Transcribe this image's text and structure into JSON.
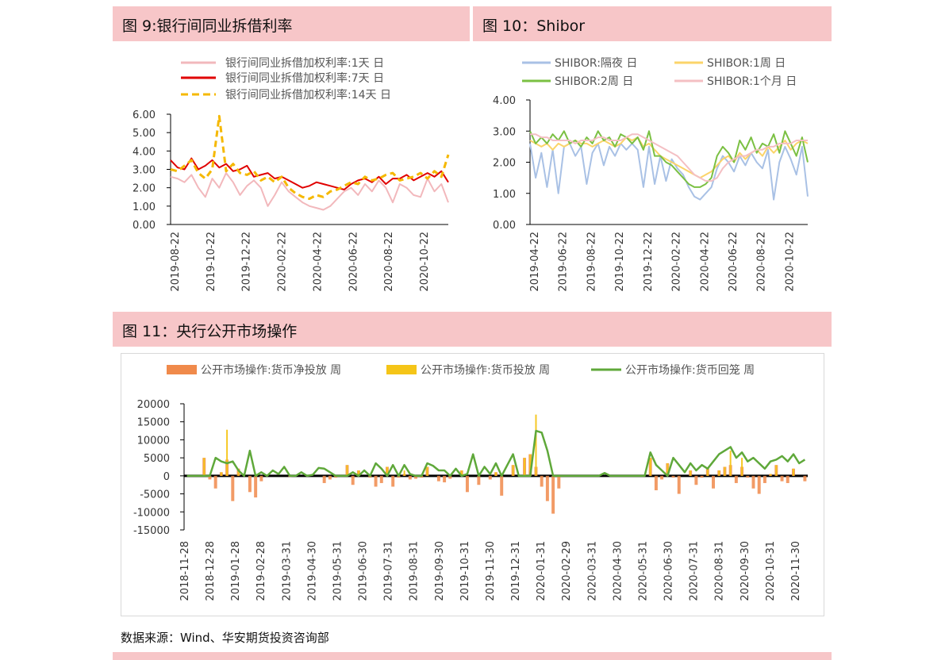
{
  "headers": {
    "fig9": "图 9:银行间同业拆借利率",
    "fig10": "图 10：Shibor",
    "fig11": "图 11：央行公开市场操作"
  },
  "source": "数据来源：Wind、华安期货投资咨询部",
  "chart_data": [
    {
      "id": "fig9",
      "type": "line",
      "ylim": [
        0,
        6
      ],
      "yticks": [
        "0.00",
        "1.00",
        "2.00",
        "3.00",
        "4.00",
        "5.00",
        "6.00"
      ],
      "xticks": [
        "2019-08-22",
        "2019-10-22",
        "2019-12-22",
        "2020-02-22",
        "2020-04-22",
        "2020-06-22",
        "2020-08-22",
        "2020-10-22"
      ],
      "legend": "top",
      "series": [
        {
          "name": "银行间同业拆借加权利率:1天 日",
          "color": "#f2b8bc",
          "style": "solid",
          "values": [
            2.6,
            2.5,
            2.3,
            2.7,
            2.0,
            1.5,
            2.5,
            2.0,
            2.8,
            2.3,
            1.6,
            2.1,
            2.4,
            2.0,
            1.0,
            1.6,
            2.3,
            1.8,
            1.5,
            1.2,
            1.0,
            0.9,
            0.8,
            1.0,
            1.4,
            1.8,
            2.0,
            1.6,
            2.2,
            1.8,
            2.4,
            2.0,
            1.2,
            2.2,
            2.0,
            1.6,
            1.5,
            2.5,
            1.8,
            2.2,
            1.2
          ]
        },
        {
          "name": "银行间同业拆借加权利率:7天 日",
          "color": "#e00000",
          "style": "solid",
          "values": [
            3.5,
            3.1,
            3.0,
            3.6,
            3.0,
            3.2,
            3.5,
            3.1,
            3.3,
            2.9,
            3.0,
            3.2,
            2.6,
            2.7,
            2.8,
            2.5,
            2.6,
            2.4,
            2.2,
            2.0,
            2.1,
            2.3,
            2.2,
            2.1,
            2.0,
            1.9,
            2.2,
            2.4,
            2.5,
            2.3,
            2.6,
            2.2,
            2.5,
            2.5,
            2.7,
            2.4,
            2.6,
            2.8,
            2.6,
            2.9,
            2.3
          ]
        },
        {
          "name": "银行间同业拆借加权利率:14天 日",
          "color": "#f5b800",
          "style": "dash",
          "values": [
            3.0,
            2.9,
            3.2,
            3.5,
            2.8,
            2.5,
            3.0,
            5.9,
            2.9,
            3.3,
            2.8,
            2.7,
            2.9,
            2.4,
            2.6,
            2.3,
            2.6,
            2.0,
            1.7,
            1.5,
            1.4,
            1.6,
            1.5,
            1.8,
            1.9,
            2.1,
            2.3,
            2.2,
            2.6,
            2.4,
            2.5,
            2.7,
            2.8,
            2.4,
            2.5,
            2.6,
            2.8,
            2.5,
            2.9,
            2.6,
            3.8
          ]
        }
      ]
    },
    {
      "id": "fig10",
      "type": "line",
      "ylim": [
        0,
        4
      ],
      "yticks": [
        "0.00",
        "1.00",
        "2.00",
        "3.00",
        "4.00"
      ],
      "xticks": [
        "2019-04-22",
        "2019-06-22",
        "2019-08-22",
        "2019-10-22",
        "2019-12-22",
        "2020-02-22",
        "2020-04-22",
        "2020-06-22",
        "2020-08-22",
        "2020-10-22"
      ],
      "legend": "top",
      "series": [
        {
          "name": "SHIBOR:隔夜 日",
          "color": "#a9c1e5",
          "values": [
            2.6,
            1.5,
            2.3,
            1.2,
            2.4,
            1.0,
            2.5,
            2.6,
            2.2,
            2.5,
            1.3,
            2.3,
            2.6,
            1.9,
            2.5,
            2.2,
            2.6,
            2.4,
            2.6,
            2.4,
            1.2,
            2.5,
            1.3,
            2.2,
            1.4,
            2.1,
            1.8,
            1.6,
            1.2,
            0.9,
            0.8,
            1.0,
            1.2,
            1.8,
            2.2,
            2.0,
            1.7,
            2.2,
            1.9,
            2.3,
            2.0,
            1.8,
            2.4,
            0.8,
            2.0,
            2.5,
            2.1,
            1.6,
            2.5,
            0.9
          ]
        },
        {
          "name": "SHIBOR:1周 日",
          "color": "#fbd46a",
          "values": [
            2.7,
            2.6,
            2.5,
            2.6,
            2.4,
            2.6,
            2.5,
            2.6,
            2.7,
            2.6,
            2.6,
            2.5,
            2.6,
            2.7,
            2.6,
            2.5,
            2.6,
            2.8,
            2.7,
            2.8,
            2.5,
            2.6,
            2.4,
            2.2,
            2.1,
            2.0,
            1.9,
            1.8,
            1.7,
            1.6,
            1.5,
            1.6,
            1.7,
            1.9,
            2.1,
            2.2,
            2.0,
            2.3,
            2.1,
            2.3,
            2.4,
            2.2,
            2.5,
            2.3,
            2.5,
            2.7,
            2.4,
            2.6,
            2.7,
            2.6
          ]
        },
        {
          "name": "SHIBOR:2周 日",
          "color": "#7bc043",
          "values": [
            3.0,
            2.6,
            2.8,
            2.6,
            2.9,
            2.7,
            3.0,
            2.6,
            2.7,
            2.5,
            2.8,
            2.6,
            3.0,
            2.7,
            2.8,
            2.5,
            2.9,
            2.8,
            2.6,
            2.8,
            2.4,
            3.0,
            2.2,
            2.2,
            2.0,
            1.9,
            1.7,
            1.5,
            1.3,
            1.2,
            1.2,
            1.3,
            1.5,
            2.2,
            2.5,
            2.3,
            2.0,
            2.7,
            2.4,
            2.8,
            2.3,
            2.6,
            2.5,
            2.9,
            2.3,
            3.0,
            2.6,
            2.2,
            2.8,
            2.0
          ]
        },
        {
          "name": "SHIBOR:1个月 日",
          "color": "#f4bfc3",
          "values": [
            2.9,
            2.9,
            2.8,
            2.8,
            2.7,
            2.7,
            2.7,
            2.7,
            2.6,
            2.7,
            2.7,
            2.7,
            2.8,
            2.8,
            2.7,
            2.7,
            2.7,
            2.8,
            2.9,
            2.9,
            2.8,
            2.7,
            2.6,
            2.5,
            2.4,
            2.3,
            2.2,
            2.0,
            1.8,
            1.6,
            1.5,
            1.4,
            1.4,
            1.5,
            1.8,
            2.0,
            2.1,
            2.2,
            2.2,
            2.3,
            2.4,
            2.4,
            2.5,
            2.5,
            2.6,
            2.6,
            2.6,
            2.7,
            2.7,
            2.7
          ]
        }
      ]
    },
    {
      "id": "fig11",
      "type": "bar",
      "ylim": [
        -15000,
        20000
      ],
      "yticks": [
        "-15000",
        "-10000",
        "-5000",
        "0",
        "5000",
        "10000",
        "15000",
        "20000"
      ],
      "xticks": [
        "2018-11-28",
        "2018-12-28",
        "2019-01-28",
        "2019-02-28",
        "2019-03-31",
        "2019-04-30",
        "2019-05-31",
        "2019-06-30",
        "2019-07-31",
        "2019-08-31",
        "2019-09-30",
        "2019-10-31",
        "2019-11-30",
        "2019-12-31",
        "2020-01-31",
        "2020-02-29",
        "2020-03-31",
        "2020-04-30",
        "2020-05-31",
        "2020-06-30",
        "2020-07-31",
        "2020-08-31",
        "2020-09-30",
        "2020-10-31",
        "2020-11-30"
      ],
      "legend": "top",
      "series": [
        {
          "name": "公开市场操作:货币净投放 周",
          "color": "#f08a4b",
          "kind": "bar",
          "values": [
            0,
            0,
            0,
            5000,
            -1000,
            -3500,
            1000,
            4500,
            -7000,
            2000,
            0,
            -4500,
            -6000,
            -1500,
            0,
            0,
            0,
            0,
            -300,
            0,
            0,
            0,
            0,
            0,
            -2000,
            -1000,
            -500,
            0,
            3000,
            -2500,
            1500,
            0,
            -500,
            -3000,
            -2000,
            2500,
            -3000,
            -500,
            500,
            -1000,
            -800,
            -500,
            2500,
            0,
            -1500,
            -1800,
            -800,
            0,
            1500,
            -4500,
            0,
            -2500,
            0,
            -1000,
            1000,
            -5500,
            0,
            3000,
            0,
            5000,
            6000,
            2500,
            -3000,
            -7000,
            -10500,
            -3500,
            0,
            0,
            0,
            0,
            0,
            0,
            0,
            0,
            0,
            0,
            0,
            0,
            0,
            0,
            0,
            5000,
            -4000,
            -1000,
            3500,
            -500,
            -5000,
            0,
            1500,
            -2500,
            -500,
            2000,
            -3500,
            1500,
            2500,
            3000,
            -2000,
            2500,
            -500,
            -3500,
            -5000,
            -2000,
            500,
            3000,
            -1500,
            -2000,
            2000,
            0,
            -1500
          ]
        },
        {
          "name": "公开市场操作:货币投放 周",
          "color": "#f5c518",
          "kind": "bar",
          "values": [
            0,
            0,
            0,
            5000,
            0,
            0,
            1000,
            12800,
            0,
            2000,
            0,
            0,
            0,
            0,
            0,
            0,
            0,
            0,
            0,
            0,
            0,
            0,
            0,
            0,
            0,
            0,
            0,
            0,
            3000,
            0,
            1500,
            0,
            0,
            0,
            0,
            2500,
            0,
            0,
            1500,
            0,
            0,
            0,
            2500,
            0,
            0,
            0,
            0,
            0,
            1500,
            0,
            0,
            0,
            0,
            0,
            1000,
            0,
            0,
            3000,
            0,
            5000,
            6000,
            17000,
            0,
            0,
            0,
            0,
            0,
            0,
            0,
            0,
            0,
            0,
            0,
            0,
            0,
            0,
            0,
            0,
            0,
            0,
            0,
            5000,
            0,
            0,
            3500,
            0,
            0,
            0,
            1500,
            0,
            0,
            2000,
            0,
            1500,
            2500,
            7000,
            0,
            5000,
            0,
            0,
            0,
            0,
            500,
            3000,
            0,
            0,
            2000,
            0,
            0
          ]
        },
        {
          "name": "公开市场操作:货币回笼 周",
          "color": "#5fa83a",
          "kind": "line",
          "values": [
            0,
            0,
            0,
            0,
            0,
            5000,
            4000,
            3500,
            4000,
            1500,
            0,
            7000,
            0,
            1000,
            0,
            1500,
            500,
            2500,
            0,
            0,
            1000,
            0,
            300,
            2200,
            2000,
            1000,
            0,
            0,
            0,
            1000,
            0,
            1500,
            0,
            3500,
            2000,
            0,
            3000,
            0,
            3000,
            500,
            0,
            0,
            3500,
            2800,
            1500,
            1500,
            0,
            2000,
            0,
            500,
            6000,
            0,
            2500,
            500,
            3500,
            0,
            3000,
            6000,
            0,
            0,
            0,
            12500,
            12000,
            7000,
            0,
            0,
            0,
            0,
            0,
            0,
            0,
            0,
            0,
            800,
            0,
            0,
            0,
            0,
            0,
            0,
            0,
            6500,
            3000,
            1500,
            0,
            5000,
            3000,
            1000,
            3500,
            1500,
            3000,
            2000,
            4000,
            6000,
            7000,
            8000,
            5000,
            6500,
            4000,
            5000,
            3500,
            2000,
            4000,
            4500,
            5500,
            4000,
            6000,
            3500,
            4500
          ]
        }
      ]
    }
  ]
}
